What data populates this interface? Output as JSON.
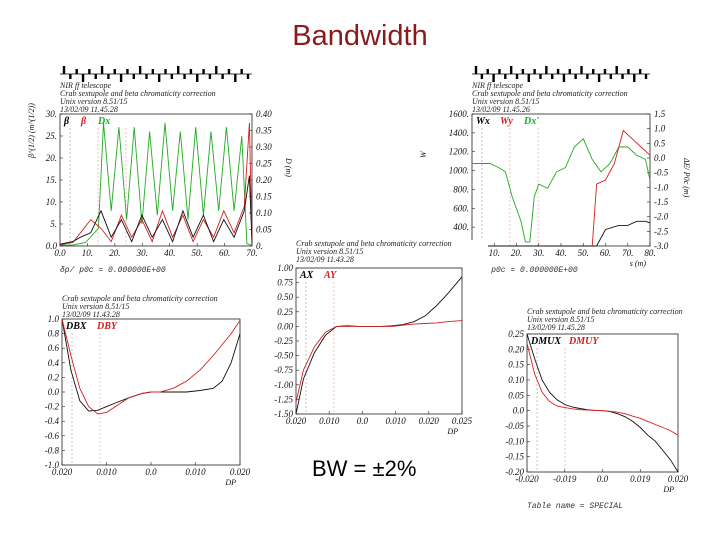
{
  "slide": {
    "title": "Bandwidth",
    "note": "BW = ±2%"
  },
  "chart_data": [
    {
      "id": "p1",
      "type": "line",
      "header": [
        "NIR ff telescope",
        "Crab sextupole and beta chromaticity correction",
        "Unix version 8.51/15",
        "13/02/09  11.45.28"
      ],
      "xlabel": "",
      "ylabel_left": "β^(1/2) (m^(1/2))",
      "ylabel_right": "D (m)",
      "xlim": [
        0,
        75
      ],
      "ylim_left": [
        0,
        30
      ],
      "ylim_right": [
        0,
        0.4
      ],
      "xticks": [
        "0.0",
        "10.",
        "20.",
        "30.",
        "40.",
        "50.",
        "60.",
        "70."
      ],
      "yticks_left": [
        "0.0",
        "5.",
        "10.",
        "15.",
        "20.",
        "25.",
        "30."
      ],
      "yticks_right": [
        "0.0",
        "0.05",
        "0.10",
        "0.15",
        "0.20",
        "0.25",
        "0.30",
        "0.35",
        "0.40"
      ],
      "legend": [
        {
          "label": "β",
          "color": "#000000"
        },
        {
          "label": "β",
          "color": "#d42020"
        },
        {
          "label": "Dx",
          "color": "#22aa22"
        }
      ],
      "footer": "δp/ p0c = 0.000000E+00",
      "series": [
        {
          "color": "#22aa22",
          "x": [
            0,
            5,
            10,
            15,
            17,
            20,
            23,
            26,
            29,
            32,
            35,
            38,
            41,
            44,
            47,
            50,
            53,
            56,
            59,
            62,
            65,
            68,
            71,
            73,
            75
          ],
          "y": [
            0.2,
            0.2,
            0.8,
            4,
            28,
            8,
            27,
            6,
            27,
            5,
            26,
            7,
            28,
            8,
            26,
            6,
            27,
            7,
            26,
            8,
            27,
            8,
            25,
            0.5,
            0.2
          ]
        },
        {
          "color": "#d42020",
          "x": [
            0,
            5,
            8,
            12,
            16,
            20,
            24,
            28,
            32,
            36,
            40,
            44,
            48,
            52,
            56,
            60,
            64,
            68,
            72,
            74,
            75
          ],
          "y": [
            0.3,
            0.8,
            3,
            6,
            4,
            1,
            7,
            2,
            6,
            1,
            8,
            2,
            7,
            1,
            6,
            2,
            8,
            3,
            9,
            28,
            1
          ]
        },
        {
          "color": "#111111",
          "x": [
            0,
            5,
            8,
            12,
            16,
            20,
            24,
            28,
            32,
            36,
            40,
            44,
            48,
            52,
            56,
            60,
            64,
            68,
            72,
            74,
            75
          ],
          "y": [
            0.4,
            1,
            2,
            3,
            8,
            2,
            6,
            1,
            7,
            2,
            6,
            1,
            8,
            2,
            7,
            1,
            6,
            2,
            8,
            16,
            0.5
          ]
        }
      ]
    },
    {
      "id": "p2",
      "type": "line",
      "header": [
        "NIR ff telescope",
        "Crab sextupole and beta chromaticity correction",
        "Unix version 8.51/15",
        "13/02/09  11.45.26"
      ],
      "xlabel": "s (m)",
      "ylabel_left": "W",
      "ylabel_right": "ΔE/ P0c (m)",
      "xlim": [
        0,
        80
      ],
      "ylim_left": [
        0,
        1600
      ],
      "ylim_right": [
        -3,
        1.5
      ],
      "xticks": [
        "0.0",
        "10.",
        "20.",
        "30.",
        "40.",
        "50.",
        "60.",
        "70.",
        "80."
      ],
      "yticks_left": [
        "200.",
        "400.",
        "600.",
        "800.",
        "1000.",
        "1200.",
        "1400.",
        "1600."
      ],
      "yticks_right": [
        "-3.0",
        "-2.5",
        "-2.0",
        "-1.5",
        "-1.0",
        "-0.5",
        "0.0",
        "0.5",
        "1.0",
        "1.5"
      ],
      "legend": [
        {
          "label": "Wx",
          "color": "#000000"
        },
        {
          "label": "Wy",
          "color": "#d42020"
        },
        {
          "label": "Dx'",
          "color": "#22aa22"
        }
      ],
      "footer": "δp/ p0c = 0.000000E+00",
      "series": [
        {
          "color": "#22aa22",
          "x": [
            0,
            8,
            12,
            15,
            18,
            22,
            24,
            26,
            28,
            30,
            34,
            38,
            42,
            46,
            50,
            54,
            58,
            62,
            66,
            70,
            74,
            78,
            80
          ],
          "y": [
            1000,
            1000,
            950,
            900,
            600,
            300,
            50,
            50,
            600,
            750,
            700,
            900,
            950,
            1200,
            1300,
            1050,
            900,
            1000,
            1200,
            1200,
            1100,
            1050,
            800
          ]
        },
        {
          "color": "#d42020",
          "x": [
            0,
            20,
            30,
            40,
            50,
            54,
            56,
            60,
            64,
            68,
            72,
            76,
            78,
            80
          ],
          "y": [
            0,
            0,
            0,
            0,
            0,
            0,
            750,
            800,
            1000,
            1400,
            1300,
            1200,
            1150,
            1100
          ]
        },
        {
          "color": "#111111",
          "x": [
            0,
            30,
            40,
            50,
            56,
            60,
            66,
            70,
            74,
            78,
            80
          ],
          "y": [
            0,
            0,
            0,
            0,
            0,
            200,
            250,
            250,
            300,
            300,
            280
          ]
        }
      ]
    },
    {
      "id": "p3",
      "type": "line",
      "header": [
        "Crab sextupole and beta chromaticity correction",
        "Unix version 8.51/15",
        "13/02/09  11.43.28"
      ],
      "xlabel": "DP",
      "ylabel_left": "",
      "xlim": [
        -0.02,
        0.025
      ],
      "ylim": [
        -1.5,
        1.0
      ],
      "xticks": [
        "0.020",
        "0.010",
        "0.0",
        "0.010",
        "0.020",
        "0.025"
      ],
      "yticks": [
        "-1.50",
        "-1.25",
        "-1.00",
        "-0.75",
        "-0.50",
        "-0.25",
        "0.00",
        "0.25",
        "0.50",
        "0.75",
        "1.00"
      ],
      "legend": [
        {
          "label": "AX",
          "color": "#000000"
        },
        {
          "label": "AY",
          "color": "#d42020"
        }
      ],
      "series": [
        {
          "color": "#111111",
          "x": [
            -0.02,
            -0.018,
            -0.015,
            -0.012,
            -0.009,
            -0.006,
            -0.003,
            0,
            0.003,
            0.006,
            0.009,
            0.012,
            0.015,
            0.018,
            0.021,
            0.025
          ],
          "y": [
            -1.5,
            -0.9,
            -0.45,
            -0.15,
            0.0,
            0.01,
            0.0,
            0.0,
            0.0,
            0.01,
            0.03,
            0.08,
            0.18,
            0.35,
            0.55,
            0.85
          ]
        },
        {
          "color": "#d42020",
          "x": [
            -0.02,
            -0.018,
            -0.015,
            -0.012,
            -0.009,
            -0.006,
            -0.003,
            0,
            0.003,
            0.006,
            0.009,
            0.012,
            0.015,
            0.018,
            0.021,
            0.025
          ],
          "y": [
            -1.3,
            -0.75,
            -0.35,
            -0.1,
            0.0,
            0.0,
            0.0,
            0.0,
            0.0,
            0.0,
            0.02,
            0.04,
            0.05,
            0.06,
            0.08,
            0.1
          ]
        }
      ]
    },
    {
      "id": "p4",
      "type": "line",
      "header": [
        "Crab sextupole and beta chromaticity correction",
        "Unix version 8.51/15",
        "13/02/09  11.43.28"
      ],
      "xlabel": "DP",
      "ylabel_left": "",
      "xlim": [
        -0.02,
        0.02
      ],
      "ylim": [
        -1.0,
        1.0
      ],
      "xticks": [
        "0.020",
        "0.010",
        "0.0",
        "0.010",
        "0.020"
      ],
      "yticks": [
        "-1.0",
        "-0.8",
        "-0.6",
        "-0.4",
        "-0.2",
        "0.0",
        "0.2",
        "0.4",
        "0.6",
        "0.8",
        "1.0"
      ],
      "legend": [
        {
          "label": "DBX",
          "color": "#000000"
        },
        {
          "label": "DBY",
          "color": "#d42020"
        }
      ],
      "series": [
        {
          "color": "#111111",
          "x": [
            -0.02,
            -0.018,
            -0.016,
            -0.014,
            -0.012,
            -0.01,
            -0.008,
            -0.005,
            -0.002,
            0,
            0.002,
            0.005,
            0.008,
            0.011,
            0.014,
            0.016,
            0.018,
            0.02
          ],
          "y": [
            1.0,
            0.3,
            -0.12,
            -0.26,
            -0.25,
            -0.2,
            -0.15,
            -0.08,
            -0.02,
            0.0,
            0.0,
            0.0,
            0.0,
            0.02,
            0.05,
            0.15,
            0.4,
            0.8
          ]
        },
        {
          "color": "#d42020",
          "x": [
            -0.02,
            -0.018,
            -0.016,
            -0.014,
            -0.012,
            -0.01,
            -0.008,
            -0.005,
            -0.002,
            0,
            0.002,
            0.005,
            0.008,
            0.011,
            0.014,
            0.016,
            0.018,
            0.02
          ],
          "y": [
            1.0,
            0.5,
            0.05,
            -0.2,
            -0.3,
            -0.28,
            -0.2,
            -0.08,
            -0.02,
            0.0,
            0.0,
            0.05,
            0.15,
            0.3,
            0.5,
            0.65,
            0.8,
            0.98
          ]
        }
      ]
    },
    {
      "id": "p5",
      "type": "line",
      "header": [
        "Crab sextupole and beta chromaticity correction",
        "Unix version 8.51/15",
        "13/02/09  11.45.28"
      ],
      "xlabel": "DP",
      "ylabel_left": "",
      "xlim": [
        -0.02,
        0.02
      ],
      "ylim": [
        -0.2,
        0.25
      ],
      "xticks": [
        "-0.020",
        "-0.019",
        "0.0",
        "0.019",
        "0.020"
      ],
      "yticks": [
        "-0.20",
        "-0.15",
        "-0.10",
        "-0.05",
        "0.0",
        "0.05",
        "0.10",
        "0.15",
        "0.20",
        "0.25"
      ],
      "legend": [
        {
          "label": "DMUX",
          "color": "#000000"
        },
        {
          "label": "DMUY",
          "color": "#d42020"
        }
      ],
      "footer": "Table name = SPECIAL",
      "series": [
        {
          "color": "#111111",
          "x": [
            -0.02,
            -0.018,
            -0.016,
            -0.014,
            -0.012,
            -0.01,
            -0.008,
            -0.006,
            -0.004,
            -0.002,
            0,
            0.002,
            0.004,
            0.006,
            0.008,
            0.01,
            0.012,
            0.014,
            0.016,
            0.018,
            0.02
          ],
          "y": [
            0.25,
            0.17,
            0.1,
            0.06,
            0.035,
            0.02,
            0.012,
            0.007,
            0.003,
            0.001,
            0.0,
            -0.003,
            -0.01,
            -0.02,
            -0.035,
            -0.055,
            -0.08,
            -0.1,
            -0.13,
            -0.16,
            -0.2
          ]
        },
        {
          "color": "#d42020",
          "x": [
            -0.02,
            -0.018,
            -0.016,
            -0.014,
            -0.012,
            -0.01,
            -0.008,
            -0.006,
            -0.004,
            -0.002,
            0,
            0.002,
            0.004,
            0.006,
            0.008,
            0.01,
            0.012,
            0.014,
            0.016,
            0.018,
            0.02
          ],
          "y": [
            0.22,
            0.12,
            0.06,
            0.03,
            0.015,
            0.01,
            0.006,
            0.003,
            0.002,
            0.001,
            0.0,
            -0.002,
            -0.005,
            -0.01,
            -0.018,
            -0.025,
            -0.035,
            -0.045,
            -0.055,
            -0.065,
            -0.08
          ]
        }
      ]
    }
  ]
}
